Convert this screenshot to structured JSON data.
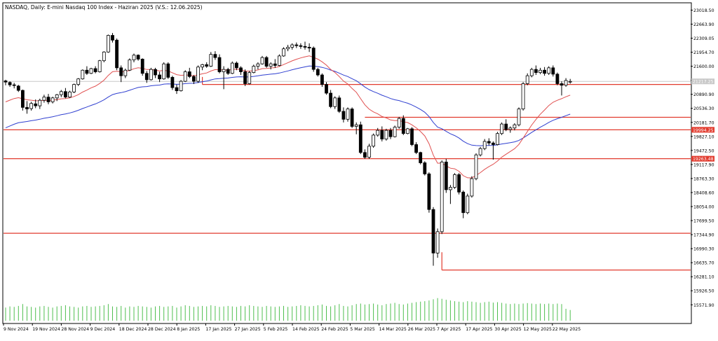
{
  "chart_header": "NASDAQ, Daily:  E-mini Nasdaq 100 Index - Haziran 2025 (V.S.: 12.06.2025)",
  "colors": {
    "background": "#ffffff",
    "candle": "#000000",
    "ma_fast": "#e05050",
    "ma_slow": "#2f3fd0",
    "level_line": "#e23b2e",
    "volume": "#4fbf4f",
    "price_tag_bg": "#e23b2e",
    "current_price_line": "#c8c8c8"
  },
  "chart_data": {
    "type": "candlestick",
    "title": "NASDAQ, Daily:  E-mini Nasdaq 100 Index - Haziran 2025 (V.S.: 12.06.2025)",
    "y_range": [
      15400,
      23150
    ],
    "y_ticks": [
      "23018.50",
      "22663.90",
      "22309.05",
      "21954.70",
      "21600.00",
      "21245.35",
      "20890.90",
      "20536.30",
      "20181.70",
      "19827.10",
      "19472.50",
      "19117.90",
      "18763.30",
      "18408.60",
      "18054.00",
      "17699.50",
      "17344.90",
      "16990.30",
      "16635.70",
      "16281.10",
      "15926.50",
      "15571.90"
    ],
    "x_labels": [
      "9 Nov 2024",
      "19 Nov 2024",
      "28 Nov 2024",
      "9 Dec 2024",
      "18 Dec 2024",
      "28 Dec 2024",
      "8 Jan 2025",
      "17 Jan 2025",
      "27 Jan 2025",
      "5 Feb 2025",
      "14 Feb 2025",
      "24 Feb 2025",
      "5 Mar 2025",
      "14 Mar 2025",
      "26 Mar 2025",
      "7 Apr 2025",
      "17 Apr 2025",
      "30 Apr 2025",
      "12 May 2025",
      "22 May 2025"
    ],
    "price_tags": [
      {
        "label": "21217.25",
        "value": 21217.25,
        "color": "#c8c8c8"
      },
      {
        "label": "19994.25",
        "value": 19994.25,
        "color": "#e23b2e"
      },
      {
        "label": "19263.48",
        "value": 19263.48,
        "color": "#e23b2e"
      }
    ],
    "horizontal_levels": [
      21140,
      20310,
      19994.25,
      19263.48,
      17380,
      16450
    ],
    "ohlc": [
      [
        21230,
        21260,
        21120,
        21200
      ],
      [
        21190,
        21220,
        21080,
        21130
      ],
      [
        21130,
        21180,
        21040,
        21120
      ],
      [
        21100,
        21130,
        20950,
        20990
      ],
      [
        20990,
        21010,
        20480,
        20560
      ],
      [
        20560,
        20720,
        20400,
        20520
      ],
      [
        20530,
        20700,
        20480,
        20660
      ],
      [
        20650,
        20760,
        20540,
        20600
      ],
      [
        20600,
        20780,
        20520,
        20740
      ],
      [
        20740,
        20880,
        20680,
        20820
      ],
      [
        20820,
        20900,
        20640,
        20700
      ],
      [
        20700,
        20830,
        20660,
        20800
      ],
      [
        20800,
        20900,
        20720,
        20880
      ],
      [
        20880,
        21000,
        20820,
        20960
      ],
      [
        20960,
        21050,
        20790,
        20820
      ],
      [
        20820,
        20980,
        20800,
        20950
      ],
      [
        20950,
        21160,
        20920,
        21140
      ],
      [
        21140,
        21300,
        21100,
        21280
      ],
      [
        21280,
        21520,
        21260,
        21500
      ],
      [
        21500,
        21600,
        21380,
        21420
      ],
      [
        21420,
        21560,
        21400,
        21540
      ],
      [
        21540,
        21600,
        21420,
        21460
      ],
      [
        21460,
        21760,
        21440,
        21740
      ],
      [
        21740,
        21980,
        21700,
        21960
      ],
      [
        21960,
        22400,
        21940,
        22380
      ],
      [
        22380,
        22440,
        22200,
        22260
      ],
      [
        22260,
        22300,
        21500,
        21560
      ],
      [
        21560,
        21620,
        21200,
        21360
      ],
      [
        21360,
        21540,
        21300,
        21500
      ],
      [
        21500,
        21800,
        21480,
        21760
      ],
      [
        21760,
        21920,
        21700,
        21880
      ],
      [
        21880,
        21900,
        21740,
        21780
      ],
      [
        21780,
        21800,
        21360,
        21420
      ],
      [
        21420,
        21480,
        21180,
        21260
      ],
      [
        21260,
        21560,
        21240,
        21520
      ],
      [
        21520,
        21560,
        21300,
        21380
      ],
      [
        21380,
        21460,
        21200,
        21280
      ],
      [
        21280,
        21700,
        21260,
        21660
      ],
      [
        21660,
        21700,
        21280,
        21320
      ],
      [
        21320,
        21360,
        21000,
        21060
      ],
      [
        21060,
        21140,
        20900,
        20980
      ],
      [
        20980,
        21250,
        20960,
        21220
      ],
      [
        21220,
        21500,
        21200,
        21460
      ],
      [
        21460,
        21560,
        21300,
        21340
      ],
      [
        21340,
        21380,
        21150,
        21220
      ],
      [
        21220,
        21620,
        21180,
        21580
      ],
      [
        21580,
        21660,
        21500,
        21640
      ],
      [
        21640,
        21700,
        21560,
        21600
      ],
      [
        21600,
        21960,
        21580,
        21900
      ],
      [
        21900,
        21980,
        21760,
        21820
      ],
      [
        21820,
        21900,
        21420,
        21460
      ],
      [
        21460,
        21600,
        21020,
        21520
      ],
      [
        21520,
        21560,
        21380,
        21420
      ],
      [
        21420,
        21720,
        21400,
        21680
      ],
      [
        21680,
        21720,
        21500,
        21560
      ],
      [
        21560,
        21600,
        21380,
        21460
      ],
      [
        21460,
        21520,
        21100,
        21160
      ],
      [
        21160,
        21480,
        21140,
        21440
      ],
      [
        21440,
        21640,
        21420,
        21600
      ],
      [
        21600,
        21700,
        21520,
        21660
      ],
      [
        21660,
        21860,
        21640,
        21820
      ],
      [
        21820,
        21860,
        21560,
        21600
      ],
      [
        21600,
        21700,
        21520,
        21660
      ],
      [
        21660,
        21780,
        21560,
        21620
      ],
      [
        21620,
        21900,
        21600,
        21860
      ],
      [
        21860,
        22080,
        21840,
        22040
      ],
      [
        22040,
        22140,
        21980,
        22080
      ],
      [
        22080,
        22180,
        22020,
        22140
      ],
      [
        22140,
        22200,
        22060,
        22120
      ],
      [
        22120,
        22180,
        22040,
        22100
      ],
      [
        22100,
        22220,
        22020,
        22080
      ],
      [
        22080,
        22180,
        21960,
        22060
      ],
      [
        22060,
        22100,
        21460,
        21520
      ],
      [
        21520,
        21560,
        21340,
        21380
      ],
      [
        21380,
        21420,
        21080,
        21140
      ],
      [
        21140,
        21200,
        20880,
        20920
      ],
      [
        20920,
        21000,
        20540,
        20580
      ],
      [
        20580,
        20840,
        20520,
        20800
      ],
      [
        20800,
        20860,
        20420,
        20460
      ],
      [
        20460,
        20560,
        20180,
        20260
      ],
      [
        20260,
        20560,
        20200,
        20520
      ],
      [
        20520,
        20560,
        20040,
        20080
      ],
      [
        20080,
        20180,
        19880,
        20120
      ],
      [
        20120,
        20200,
        19380,
        19420
      ],
      [
        19420,
        19500,
        19260,
        19300
      ],
      [
        19300,
        19640,
        19260,
        19580
      ],
      [
        19580,
        19900,
        19540,
        19860
      ],
      [
        19860,
        20040,
        19820,
        19980
      ],
      [
        19980,
        20080,
        19700,
        19760
      ],
      [
        19760,
        20020,
        19720,
        19980
      ],
      [
        19980,
        20040,
        19760,
        19820
      ],
      [
        19820,
        20100,
        19800,
        20060
      ],
      [
        20060,
        20320,
        20020,
        20280
      ],
      [
        20280,
        20360,
        19860,
        19900
      ],
      [
        19900,
        20040,
        19880,
        20020
      ],
      [
        20020,
        20060,
        19580,
        19620
      ],
      [
        19620,
        19680,
        19380,
        19420
      ],
      [
        19420,
        19440,
        19120,
        19160
      ],
      [
        19160,
        19200,
        18840,
        18880
      ],
      [
        18880,
        18920,
        17900,
        17980
      ],
      [
        17980,
        18040,
        16560,
        16880
      ],
      [
        16880,
        17500,
        16760,
        17420
      ],
      [
        17420,
        19220,
        17360,
        19180
      ],
      [
        19180,
        19260,
        18400,
        18480
      ],
      [
        18480,
        18600,
        18120,
        18540
      ],
      [
        18540,
        18900,
        18500,
        18860
      ],
      [
        18860,
        18900,
        18360,
        18420
      ],
      [
        18420,
        18460,
        17760,
        17900
      ],
      [
        17900,
        18380,
        17860,
        18320
      ],
      [
        18320,
        18820,
        18280,
        18760
      ],
      [
        18760,
        19400,
        18720,
        19360
      ],
      [
        19360,
        19560,
        19320,
        19520
      ],
      [
        19520,
        19760,
        19480,
        19700
      ],
      [
        19700,
        19780,
        19600,
        19660
      ],
      [
        19660,
        19700,
        19240,
        19620
      ],
      [
        19620,
        19940,
        19600,
        19900
      ],
      [
        19900,
        20180,
        19860,
        20140
      ],
      [
        20140,
        20260,
        19960,
        20000
      ],
      [
        20000,
        20080,
        19920,
        20040
      ],
      [
        20040,
        20160,
        19980,
        20120
      ],
      [
        20120,
        20560,
        20080,
        20520
      ],
      [
        20520,
        21200,
        20480,
        21160
      ],
      [
        21160,
        21420,
        21120,
        21360
      ],
      [
        21360,
        21560,
        21320,
        21520
      ],
      [
        21520,
        21620,
        21380,
        21440
      ],
      [
        21440,
        21560,
        21400,
        21500
      ],
      [
        21500,
        21580,
        21360,
        21420
      ],
      [
        21420,
        21600,
        21380,
        21560
      ],
      [
        21560,
        21620,
        21340,
        21400
      ],
      [
        21400,
        21440,
        21120,
        21160
      ],
      [
        21160,
        21220,
        20860,
        21120
      ],
      [
        21120,
        21300,
        21080,
        21240
      ],
      [
        21200,
        21280,
        21160,
        21217.25
      ]
    ],
    "ma_fast_start": 20640,
    "ma_slow_start": 19990,
    "volume_relative": [
      0.55,
      0.6,
      0.58,
      0.62,
      0.7,
      0.6,
      0.58,
      0.55,
      0.6,
      0.62,
      0.58,
      0.55,
      0.6,
      0.62,
      0.65,
      0.6,
      0.58,
      0.55,
      0.6,
      0.62,
      0.58,
      0.6,
      0.62,
      0.65,
      0.7,
      0.6,
      0.58,
      0.62,
      0.55,
      0.6,
      0.58,
      0.62,
      0.6,
      0.58,
      0.55,
      0.6,
      0.62,
      0.58,
      0.6,
      0.62,
      0.55,
      0.6,
      0.65,
      0.62,
      0.58,
      0.6,
      0.62,
      0.6,
      0.65,
      0.62,
      0.58,
      0.6,
      0.62,
      0.6,
      0.58,
      0.62,
      0.6,
      0.65,
      0.62,
      0.6,
      0.58,
      0.62,
      0.6,
      0.58,
      0.6,
      0.62,
      0.58,
      0.6,
      0.62,
      0.65,
      0.62,
      0.6,
      0.62,
      0.65,
      0.68,
      0.62,
      0.6,
      0.65,
      0.7,
      0.62,
      0.6,
      0.65,
      0.7,
      0.72,
      0.68,
      0.7,
      0.72,
      0.68,
      0.65,
      0.7,
      0.72,
      0.75,
      0.7,
      0.68,
      0.72,
      0.75,
      0.78,
      0.8,
      0.82,
      0.85,
      0.9,
      0.95,
      0.92,
      0.88,
      0.85,
      0.82,
      0.8,
      0.78,
      0.82,
      0.8,
      0.78,
      0.75,
      0.78,
      0.8,
      0.76,
      0.78,
      0.75,
      0.72,
      0.7,
      0.72,
      0.7,
      0.72,
      0.74,
      0.72,
      0.7,
      0.72,
      0.7,
      0.72,
      0.7,
      0.72,
      0.7,
      0.5,
      0.45
    ]
  }
}
